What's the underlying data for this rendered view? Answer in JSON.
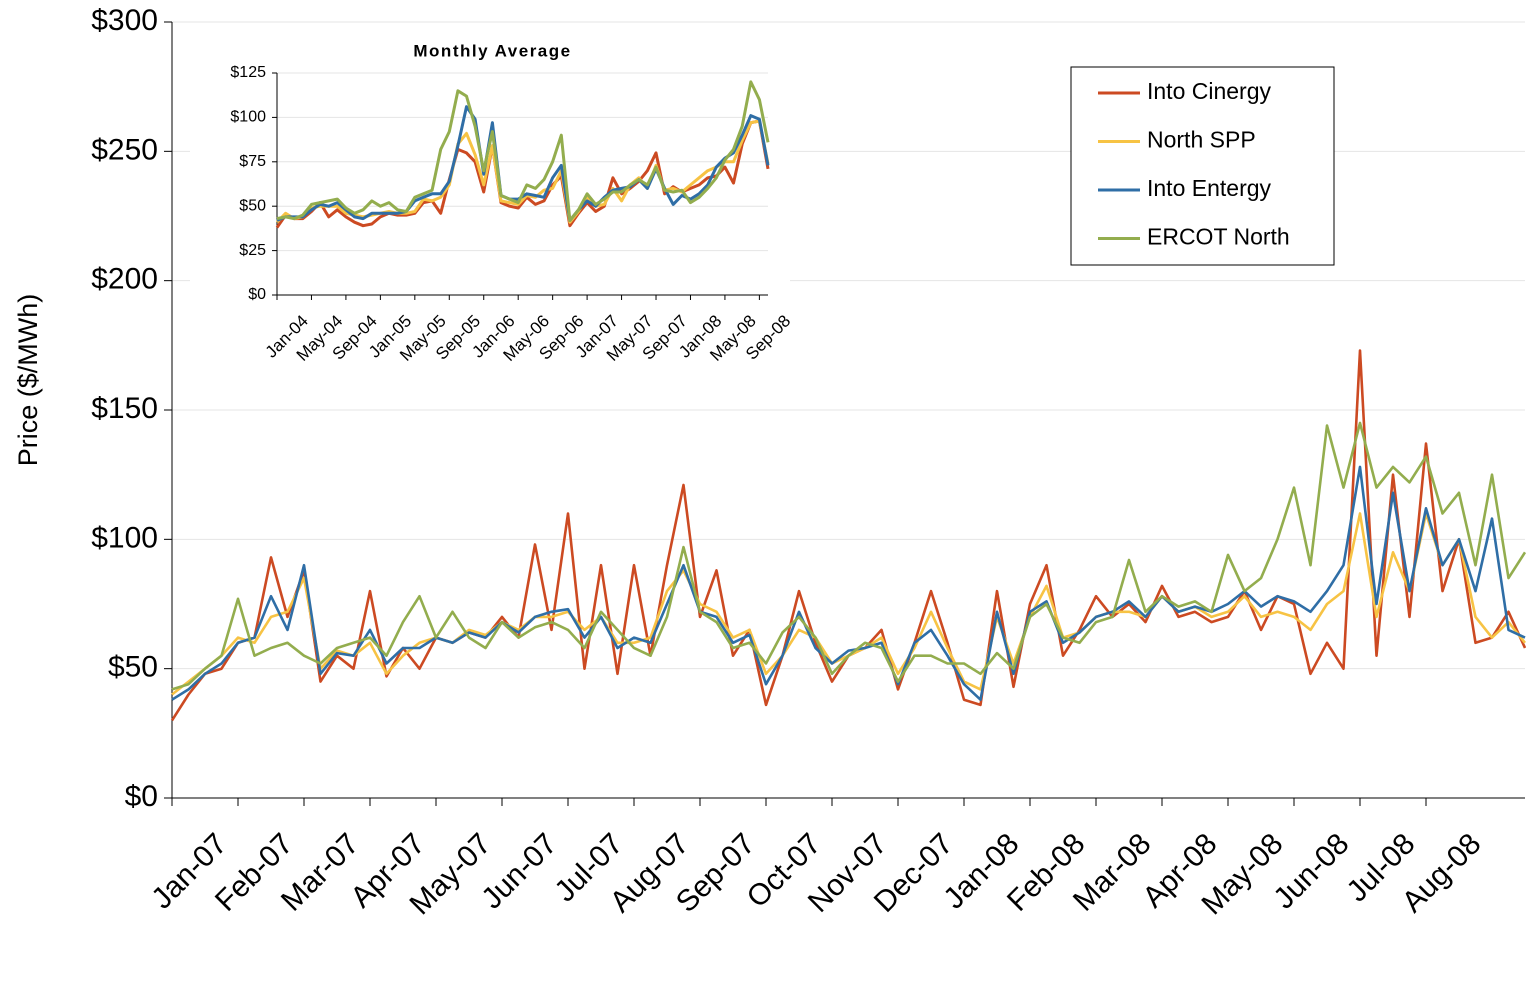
{
  "chart_data": [
    {
      "type": "line",
      "y_label": "Price ($/MWh)",
      "legend": "top-right",
      "grid": true,
      "categories": [
        "Jan-07",
        null,
        null,
        null,
        "Feb-07",
        null,
        null,
        null,
        "Mar-07",
        null,
        null,
        null,
        "Apr-07",
        null,
        null,
        null,
        "May-07",
        null,
        null,
        null,
        "Jun-07",
        null,
        null,
        null,
        "Jul-07",
        null,
        null,
        null,
        "Aug-07",
        null,
        null,
        null,
        "Sep-07",
        null,
        null,
        null,
        "Oct-07",
        null,
        null,
        null,
        "Nov-07",
        null,
        null,
        null,
        "Dec-07",
        null,
        null,
        null,
        "Jan-08",
        null,
        null,
        null,
        "Feb-08",
        null,
        null,
        null,
        "Mar-08",
        null,
        null,
        null,
        "Apr-08",
        null,
        null,
        null,
        "May-08",
        null,
        null,
        null,
        "Jun-08",
        null,
        null,
        null,
        "Jul-08",
        null,
        null,
        null,
        "Aug-08",
        null,
        null,
        null,
        null,
        null,
        null
      ],
      "ylim": [
        0,
        300
      ],
      "yticks": [
        {
          "value": 0,
          "label": "$0"
        },
        {
          "value": 50,
          "label": "$50"
        },
        {
          "value": 100,
          "label": "$100"
        },
        {
          "value": 150,
          "label": "$150"
        },
        {
          "value": 200,
          "label": "$200"
        },
        {
          "value": 250,
          "label": "$250"
        },
        {
          "value": 300,
          "label": "$300"
        }
      ],
      "series": [
        {
          "name": "Into Cinergy",
          "color": "#cc4a22",
          "values": [
            30,
            40,
            48,
            50,
            60,
            62,
            93,
            70,
            88,
            45,
            55,
            50,
            80,
            47,
            58,
            50,
            62,
            60,
            64,
            62,
            70,
            62,
            98,
            65,
            110,
            50,
            90,
            48,
            90,
            55,
            90,
            121,
            70,
            88,
            55,
            65,
            36,
            55,
            80,
            60,
            45,
            55,
            58,
            65,
            42,
            60,
            80,
            60,
            38,
            36,
            80,
            43,
            75,
            90,
            55,
            65,
            78,
            70,
            75,
            68,
            82,
            70,
            72,
            68,
            70,
            80,
            65,
            78,
            75,
            48,
            60,
            50,
            173,
            55,
            125,
            70,
            137,
            80,
            100,
            60,
            62,
            72,
            58
          ]
        },
        {
          "name": "North SPP",
          "color": "#f7c344",
          "values": [
            40,
            45,
            50,
            55,
            62,
            60,
            70,
            72,
            85,
            50,
            57,
            55,
            60,
            48,
            55,
            60,
            62,
            60,
            65,
            63,
            68,
            65,
            70,
            70,
            72,
            65,
            70,
            60,
            60,
            62,
            80,
            88,
            75,
            72,
            62,
            65,
            48,
            55,
            65,
            62,
            52,
            55,
            58,
            62,
            48,
            58,
            72,
            58,
            45,
            42,
            70,
            52,
            70,
            82,
            62,
            64,
            70,
            72,
            72,
            70,
            78,
            72,
            74,
            70,
            72,
            78,
            70,
            72,
            70,
            65,
            75,
            80,
            110,
            70,
            95,
            80,
            110,
            90,
            100,
            70,
            62,
            68,
            60
          ]
        },
        {
          "name": "Into Entergy",
          "color": "#2f6ea6",
          "values": [
            38,
            42,
            48,
            52,
            60,
            62,
            78,
            65,
            90,
            48,
            56,
            55,
            65,
            52,
            58,
            58,
            62,
            60,
            64,
            62,
            68,
            64,
            70,
            72,
            73,
            62,
            70,
            58,
            62,
            60,
            75,
            90,
            72,
            70,
            60,
            63,
            44,
            55,
            72,
            58,
            52,
            57,
            58,
            60,
            44,
            60,
            65,
            55,
            44,
            38,
            72,
            48,
            72,
            76,
            60,
            64,
            70,
            72,
            76,
            70,
            78,
            72,
            74,
            72,
            75,
            80,
            74,
            78,
            76,
            72,
            80,
            90,
            128,
            75,
            118,
            80,
            112,
            90,
            100,
            80,
            108,
            65,
            62
          ]
        },
        {
          "name": "ERCOT North",
          "color": "#93ad4e",
          "values": [
            42,
            44,
            50,
            55,
            77,
            55,
            58,
            60,
            55,
            52,
            58,
            60,
            62,
            55,
            68,
            78,
            62,
            72,
            62,
            58,
            68,
            62,
            66,
            68,
            65,
            58,
            72,
            65,
            58,
            55,
            70,
            97,
            72,
            68,
            58,
            60,
            52,
            64,
            70,
            62,
            48,
            55,
            60,
            58,
            45,
            55,
            55,
            52,
            52,
            48,
            56,
            50,
            70,
            75,
            62,
            60,
            68,
            70,
            92,
            72,
            78,
            74,
            76,
            72,
            94,
            80,
            85,
            100,
            120,
            90,
            144,
            120,
            145,
            120,
            128,
            122,
            132,
            110,
            118,
            90,
            125,
            85,
            95
          ]
        }
      ]
    },
    {
      "type": "line",
      "title": "Monthly Average",
      "grid": true,
      "categories": [
        "Jan-04",
        null,
        null,
        null,
        "May-04",
        null,
        null,
        null,
        "Sep-04",
        null,
        null,
        null,
        "Jan-05",
        null,
        null,
        null,
        "May-05",
        null,
        null,
        null,
        "Sep-05",
        null,
        null,
        null,
        "Jan-06",
        null,
        null,
        null,
        "May-06",
        null,
        null,
        null,
        "Sep-06",
        null,
        null,
        null,
        "Jan-07",
        null,
        null,
        null,
        "May-07",
        null,
        null,
        null,
        "Sep-07",
        null,
        null,
        null,
        "Jan-08",
        null,
        null,
        null,
        "May-08",
        null,
        null,
        null,
        "Sep-08",
        null
      ],
      "ylim": [
        0,
        125
      ],
      "yticks": [
        {
          "value": 0,
          "label": "$0"
        },
        {
          "value": 25,
          "label": "$25"
        },
        {
          "value": 50,
          "label": "$50"
        },
        {
          "value": 75,
          "label": "$75"
        },
        {
          "value": 100,
          "label": "$100"
        },
        {
          "value": 125,
          "label": "$125"
        }
      ],
      "series": [
        {
          "color": "#cc4a22",
          "values": [
            38,
            45,
            43,
            43,
            47,
            52,
            44,
            48,
            44,
            41,
            39,
            40,
            44,
            46,
            45,
            45,
            46,
            52,
            53,
            46,
            65,
            82,
            80,
            75,
            58,
            84,
            52,
            50,
            49,
            55,
            51,
            53,
            62,
            67,
            39,
            46,
            52,
            47,
            50,
            66,
            57,
            60,
            64,
            70,
            80,
            57,
            61,
            58,
            60,
            62,
            66,
            67,
            72,
            63,
            85,
            97,
            98,
            71
          ]
        },
        {
          "color": "#f7c344",
          "values": [
            41,
            46,
            43,
            44,
            49,
            50,
            50,
            50,
            46,
            45,
            44,
            45,
            46,
            47,
            46,
            46,
            47,
            54,
            53,
            55,
            62,
            85,
            91,
            79,
            62,
            84,
            53,
            52,
            51,
            56,
            55,
            59,
            60,
            70,
            41,
            47,
            55,
            50,
            51,
            60,
            53,
            62,
            66,
            60,
            73,
            59,
            60,
            58,
            62,
            66,
            70,
            72,
            75,
            75,
            87,
            97,
            98,
            74
          ]
        },
        {
          "color": "#2f6ea6",
          "values": [
            42,
            44,
            44,
            44,
            48,
            51,
            50,
            52,
            48,
            44,
            43,
            46,
            46,
            46,
            46,
            47,
            53,
            55,
            57,
            57,
            64,
            84,
            106,
            99,
            68,
            97,
            56,
            54,
            54,
            57,
            56,
            55,
            66,
            73,
            42,
            48,
            53,
            50,
            55,
            59,
            60,
            61,
            65,
            60,
            71,
            60,
            51,
            56,
            54,
            57,
            62,
            72,
            77,
            80,
            90,
            101,
            99,
            73
          ]
        },
        {
          "color": "#93ad4e",
          "values": [
            43,
            44,
            43,
            45,
            51,
            52,
            53,
            54,
            49,
            46,
            48,
            53,
            50,
            52,
            48,
            47,
            55,
            57,
            59,
            82,
            92,
            115,
            112,
            95,
            70,
            92,
            56,
            54,
            52,
            62,
            60,
            65,
            75,
            90,
            42,
            48,
            57,
            51,
            54,
            58,
            58,
            62,
            65,
            62,
            72,
            59,
            58,
            59,
            52,
            55,
            60,
            66,
            76,
            82,
            95,
            120,
            110,
            86
          ]
        }
      ]
    }
  ]
}
